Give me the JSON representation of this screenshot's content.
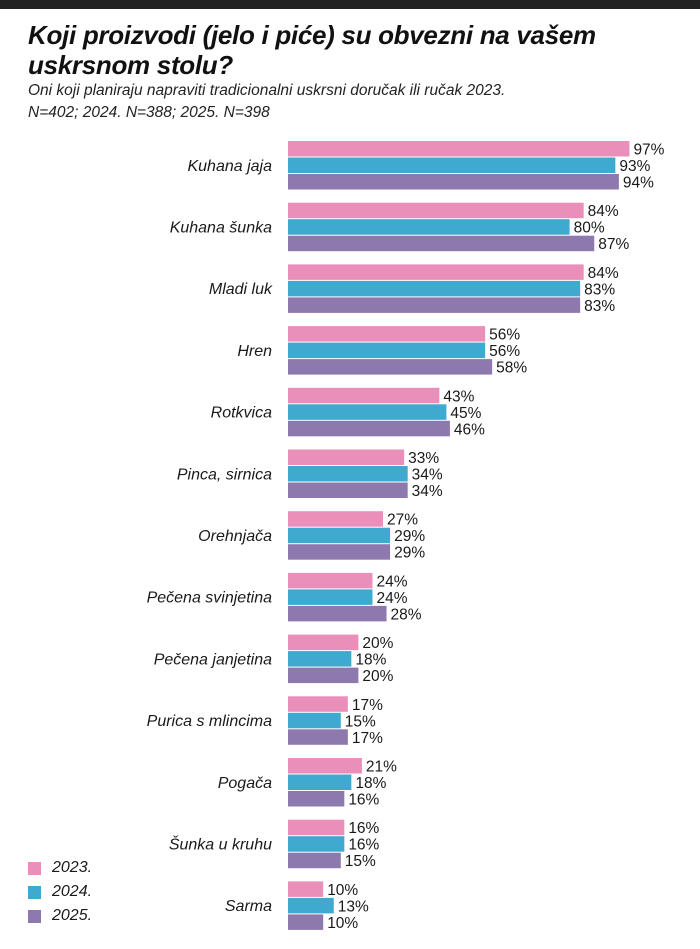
{
  "header": {
    "title": "Koji proizvodi (jelo i piće) su obvezni na vašem uskrsnom stolu?",
    "subtitle_line1": "Oni koji planiraju napraviti tradicionalni uskrsni doručak ili ručak 2023.",
    "subtitle_line2": "N=402; 2024. N=388; 2025. N=398"
  },
  "chart_data": {
    "type": "bar",
    "orientation": "horizontal",
    "title": "Koji proizvodi (jelo i piće) su obvezni na vašem uskrsnom stolu?",
    "subtitle": "Oni koji planiraju napraviti tradicionalni uskrsni doručak ili ručak 2023. N=402; 2024. N=388; 2025. N=398",
    "xlabel": "",
    "ylabel": "",
    "value_suffix": "%",
    "xlim": [
      0,
      100
    ],
    "grid": false,
    "legend_position": "bottom-left",
    "categories": [
      "Kuhana jaja",
      "Kuhana šunka",
      "Mladi luk",
      "Hren",
      "Rotkvica",
      "Pinca, sirnica",
      "Orehnjača",
      "Pečena svinjetina",
      "Pečena janjetina",
      "Purica s mlincima",
      "Pogača",
      "Šunka u kruhu",
      "Sarma"
    ],
    "series": [
      {
        "name": "2023.",
        "color": "#ea8fba",
        "values": [
          97,
          84,
          84,
          56,
          43,
          33,
          27,
          24,
          20,
          17,
          21,
          16,
          10
        ]
      },
      {
        "name": "2024.",
        "color": "#3fa9cf",
        "values": [
          93,
          80,
          83,
          56,
          45,
          34,
          29,
          24,
          18,
          15,
          18,
          16,
          13
        ]
      },
      {
        "name": "2025.",
        "color": "#8e79ae",
        "values": [
          94,
          87,
          83,
          58,
          46,
          34,
          29,
          28,
          20,
          17,
          16,
          15,
          10
        ]
      }
    ]
  }
}
